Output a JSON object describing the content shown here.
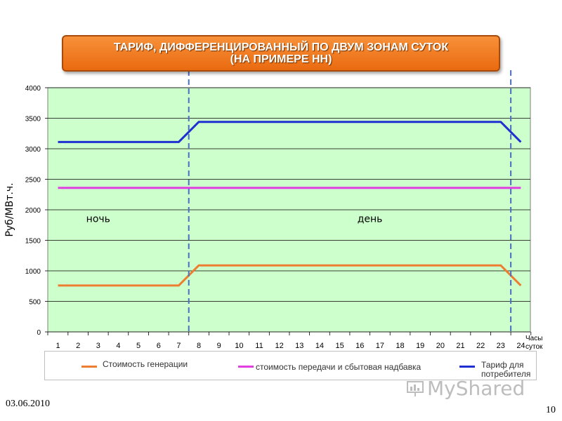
{
  "title": {
    "line1": "ТАРИФ, ДИФФЕРЕНЦИРОВАННЫЙ ПО ДВУМ ЗОНАМ СУТОК",
    "line2": "(НА ПРИМЕРЕ НН)"
  },
  "chart_data": {
    "type": "line",
    "ylabel": "Руб/МВт.ч.",
    "xlabel_line1": "Часы",
    "xlabel_line2": "суток",
    "ylim": [
      0,
      4000
    ],
    "yticks": [
      0,
      500,
      1000,
      1500,
      2000,
      2500,
      3000,
      3500,
      4000
    ],
    "x": [
      1,
      2,
      3,
      4,
      5,
      6,
      7,
      8,
      9,
      10,
      11,
      12,
      13,
      14,
      15,
      16,
      17,
      18,
      19,
      20,
      21,
      22,
      23,
      24
    ],
    "grid": true,
    "zone_boundaries": [
      7.5,
      23.5
    ],
    "zones": [
      {
        "label": "ночь",
        "x": 3,
        "y": 1800
      },
      {
        "label": "день",
        "x": 16.5,
        "y": 1800
      }
    ],
    "series": [
      {
        "name": "Стоимость генерации",
        "color": "#ed7d31",
        "values": [
          760,
          760,
          760,
          760,
          760,
          760,
          760,
          1090,
          1090,
          1090,
          1090,
          1090,
          1090,
          1090,
          1090,
          1090,
          1090,
          1090,
          1090,
          1090,
          1090,
          1090,
          1090,
          760
        ]
      },
      {
        "name": "стоимость передачи и сбытовая надбавка",
        "color": "#e040e0",
        "values": [
          2360,
          2360,
          2360,
          2360,
          2360,
          2360,
          2360,
          2360,
          2360,
          2360,
          2360,
          2360,
          2360,
          2360,
          2360,
          2360,
          2360,
          2360,
          2360,
          2360,
          2360,
          2360,
          2360,
          2360
        ]
      },
      {
        "name": "Тариф для потребителя",
        "color": "#1f2fd0",
        "values": [
          3110,
          3110,
          3110,
          3110,
          3110,
          3110,
          3110,
          3440,
          3440,
          3440,
          3440,
          3440,
          3440,
          3440,
          3440,
          3440,
          3440,
          3440,
          3440,
          3440,
          3440,
          3440,
          3440,
          3110
        ]
      }
    ]
  },
  "legend": {
    "item1": "Стоимость генерации",
    "item2": "стоимость передачи и сбытовая надбавка",
    "item3_line1": "Тариф для",
    "item3_line2": "потребителя"
  },
  "footer": {
    "date": "03.06.2010",
    "page": "10"
  },
  "watermark": "MyShared"
}
